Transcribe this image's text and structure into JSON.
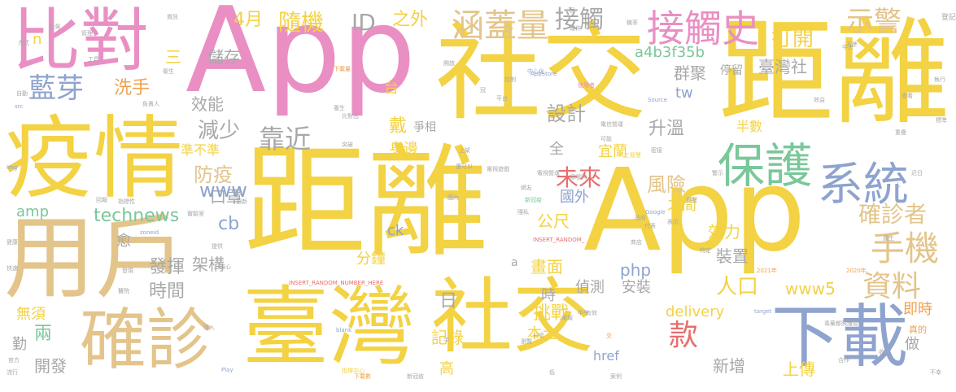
{
  "palette": {
    "yellow": "#f5c95a",
    "gold": "#f3d243",
    "sand": "#e3c48a",
    "pink": "#e98fc4",
    "blue": "#8ea3ce",
    "green": "#7ac79a",
    "orange": "#f0a150",
    "red": "#e86e6e",
    "gray": "#a8a8a8"
  },
  "words": [
    {
      "text": "App",
      "color": "pink"
    },
    {
      "text": "距離",
      "color": "gold"
    },
    {
      "text": "App",
      "color": "gold"
    },
    {
      "text": "社交",
      "color": "gold"
    },
    {
      "text": "距離",
      "color": "gold"
    },
    {
      "text": "疫情",
      "color": "gold"
    },
    {
      "text": "臺灣",
      "color": "gold"
    },
    {
      "text": "用戶",
      "color": "sand"
    },
    {
      "text": "社交",
      "color": "gold"
    },
    {
      "text": "確診",
      "color": "sand"
    },
    {
      "text": "比對",
      "color": "pink"
    },
    {
      "text": "下載",
      "color": "blue"
    },
    {
      "text": "保護",
      "color": "green"
    },
    {
      "text": "系統",
      "color": "blue"
    },
    {
      "text": "接觸史",
      "color": "pink"
    },
    {
      "text": "涵蓋量",
      "color": "sand"
    },
    {
      "text": "藍芽",
      "color": "blue"
    },
    {
      "text": "接觸",
      "color": "gray"
    },
    {
      "text": "示警",
      "color": "sand"
    },
    {
      "text": "手機",
      "color": "sand"
    },
    {
      "text": "資料",
      "color": "sand"
    },
    {
      "text": "確診者",
      "color": "sand"
    },
    {
      "text": "未來",
      "color": "red"
    },
    {
      "text": "風險",
      "color": "sand"
    },
    {
      "text": "4月",
      "color": "gold"
    },
    {
      "text": "隨機",
      "color": "gold"
    },
    {
      "text": "ID",
      "color": "gray"
    },
    {
      "text": "之外",
      "color": "gold"
    },
    {
      "text": "打開",
      "color": "gold"
    },
    {
      "text": "靠近",
      "color": "gray"
    },
    {
      "text": "減少",
      "color": "gray"
    },
    {
      "text": "防疫",
      "color": "sand"
    },
    {
      "text": "效能",
      "color": "gray"
    },
    {
      "text": "儲存",
      "color": "gray"
    },
    {
      "text": "洗手",
      "color": "orange"
    },
    {
      "text": "設計",
      "color": "gray"
    },
    {
      "text": "升溫",
      "color": "gray"
    },
    {
      "text": "群聚",
      "color": "gray"
    },
    {
      "text": "臺灣社",
      "color": "gray"
    },
    {
      "text": "停留",
      "color": "gray"
    },
    {
      "text": "a4b3f35b",
      "color": "green"
    },
    {
      "text": "tw",
      "color": "blue"
    },
    {
      "text": "台",
      "color": "gold"
    },
    {
      "text": "口罩",
      "color": "gray"
    },
    {
      "text": "www",
      "color": "blue"
    },
    {
      "text": "technews",
      "color": "green"
    },
    {
      "text": "amp",
      "color": "green"
    },
    {
      "text": "cb",
      "color": "blue"
    },
    {
      "text": "ck",
      "color": "blue"
    },
    {
      "text": "公尺",
      "color": "gold"
    },
    {
      "text": "國外",
      "color": "blue"
    },
    {
      "text": "之間",
      "color": "gold"
    },
    {
      "text": "宜蘭",
      "color": "gold"
    },
    {
      "text": "身邊",
      "color": "gold"
    },
    {
      "text": "準不準",
      "color": "gold"
    },
    {
      "text": "半數",
      "color": "gold"
    },
    {
      "text": "戴",
      "color": "gold"
    },
    {
      "text": "爭相",
      "color": "gray"
    },
    {
      "text": "全",
      "color": "gray"
    },
    {
      "text": "效力",
      "color": "gold"
    },
    {
      "text": "裝置",
      "color": "gray"
    },
    {
      "text": "人口",
      "color": "gold"
    },
    {
      "text": "架構",
      "color": "gray"
    },
    {
      "text": "發揮",
      "color": "gray"
    },
    {
      "text": "時間",
      "color": "gray"
    },
    {
      "text": "愈",
      "color": "gray"
    },
    {
      "text": "分鐘",
      "color": "gold"
    },
    {
      "text": "畫面",
      "color": "gold"
    },
    {
      "text": "php",
      "color": "blue"
    },
    {
      "text": "www5",
      "color": "gold"
    },
    {
      "text": "安裝",
      "color": "gray"
    },
    {
      "text": "偵測",
      "color": "gray"
    },
    {
      "text": "日",
      "color": "gray"
    },
    {
      "text": "時",
      "color": "gray"
    },
    {
      "text": "delivery",
      "color": "gold"
    },
    {
      "text": "款",
      "color": "red"
    },
    {
      "text": "挑戰",
      "color": "gold"
    },
    {
      "text": "即時",
      "color": "orange"
    },
    {
      "text": "記錄",
      "color": "gold"
    },
    {
      "text": "本土",
      "color": "gold"
    },
    {
      "text": "新增",
      "color": "gray"
    },
    {
      "text": "上傳",
      "color": "gold"
    },
    {
      "text": "做",
      "color": "gray"
    },
    {
      "text": "高",
      "color": "gold"
    },
    {
      "text": "無須",
      "color": "gold"
    },
    {
      "text": "兩",
      "color": "green"
    },
    {
      "text": "勤",
      "color": "gray"
    },
    {
      "text": "開發",
      "color": "gray"
    },
    {
      "text": "href",
      "color": "blue"
    },
    {
      "text": "三",
      "color": "gold"
    },
    {
      "text": "n",
      "color": "gold"
    },
    {
      "text": "a",
      "color": "gray"
    },
    {
      "text": "真的",
      "color": "orange"
    },
    {
      "text": "2020年",
      "color": "orange"
    },
    {
      "text": "2021年",
      "color": "orange"
    },
    {
      "text": "INSERT_RANDOM_NUMBER_HERE",
      "color": "red"
    },
    {
      "text": "INSERT_RANDOM_",
      "color": "red"
    },
    {
      "text": "AppStore",
      "color": "blue"
    },
    {
      "text": "Google",
      "color": "blue"
    },
    {
      "text": "Source",
      "color": "blue"
    },
    {
      "text": "target",
      "color": "blue"
    },
    {
      "text": "blank",
      "color": "blue"
    },
    {
      "text": "Play",
      "color": "blue"
    },
    {
      "text": "img",
      "color": "blue"
    },
    {
      "text": "src",
      "color": "blue"
    },
    {
      "text": "zoneid",
      "color": "blue"
    },
    {
      "text": "300萬",
      "color": "gold"
    },
    {
      "text": "下載量",
      "color": "orange"
    },
    {
      "text": "下載數",
      "color": "orange"
    },
    {
      "text": "中心化",
      "color": "blue"
    },
    {
      "text": "人工智慧",
      "color": "gold"
    },
    {
      "text": "指揮中心",
      "color": "gold"
    },
    {
      "text": "使用者",
      "color": "pink"
    },
    {
      "text": "電信營運",
      "color": "gray"
    },
    {
      "text": "電視營運",
      "color": "gray"
    },
    {
      "text": "電視遊戲",
      "color": "gray"
    },
    {
      "text": "新冠疫",
      "color": "green"
    },
    {
      "text": "毒藥都照護管",
      "color": "gray"
    },
    {
      "text": "還可以",
      "color": "gray"
    },
    {
      "text": "可能",
      "color": "gray"
    },
    {
      "text": "提醒",
      "color": "gray"
    },
    {
      "text": "中午",
      "color": "gray"
    },
    {
      "text": "分享",
      "color": "gray"
    },
    {
      "text": "隱私",
      "color": "gray"
    },
    {
      "text": "上架",
      "color": "gray"
    },
    {
      "text": "平台",
      "color": "gray"
    },
    {
      "text": "方式",
      "color": "gray"
    },
    {
      "text": "工具",
      "color": "gray"
    },
    {
      "text": "自動",
      "color": "gray"
    },
    {
      "text": "指標性",
      "color": "gray"
    },
    {
      "text": "負責人",
      "color": "gray"
    },
    {
      "text": "衛生",
      "color": "gray"
    },
    {
      "text": "資訊",
      "color": "gray"
    },
    {
      "text": "養生",
      "color": "gray"
    },
    {
      "text": "密接",
      "color": "gray"
    },
    {
      "text": "代表",
      "color": "gray"
    },
    {
      "text": "回報",
      "color": "gray"
    },
    {
      "text": "不準",
      "color": "gray"
    },
    {
      "text": "重疊",
      "color": "gray"
    },
    {
      "text": "提供",
      "color": "gray"
    },
    {
      "text": "實驗室",
      "color": "gray"
    },
    {
      "text": "比對出",
      "color": "gray"
    },
    {
      "text": "更新",
      "color": "gray"
    },
    {
      "text": "導入",
      "color": "gray"
    },
    {
      "text": "表示",
      "color": "gray"
    },
    {
      "text": "有效",
      "color": "gray"
    },
    {
      "text": "網友",
      "color": "gray"
    },
    {
      "text": "商店",
      "color": "gray"
    },
    {
      "text": "開啟",
      "color": "gray"
    },
    {
      "text": "擔心",
      "color": "gray"
    },
    {
      "text": "官方",
      "color": "gray"
    },
    {
      "text": "流行",
      "color": "gray"
    },
    {
      "text": "快速",
      "color": "gray"
    },
    {
      "text": "健康",
      "color": "gray"
    },
    {
      "text": "醫院",
      "color": "gray"
    },
    {
      "text": "案例",
      "color": "gray"
    },
    {
      "text": "近日",
      "color": "gray"
    },
    {
      "text": "管理",
      "color": "gray"
    },
    {
      "text": "機率",
      "color": "gray"
    },
    {
      "text": "運作",
      "color": "gray"
    },
    {
      "text": "突破",
      "color": "gray"
    },
    {
      "text": "合作",
      "color": "gray"
    },
    {
      "text": "產生",
      "color": "gray"
    },
    {
      "text": "控制",
      "color": "gray"
    },
    {
      "text": "發現",
      "color": "gray"
    },
    {
      "text": "效益",
      "color": "gray"
    },
    {
      "text": "台灣",
      "color": "gray"
    },
    {
      "text": "國內",
      "color": "gray"
    },
    {
      "text": "收入",
      "color": "gray"
    },
    {
      "text": "警示",
      "color": "gray"
    },
    {
      "text": "登記",
      "color": "gray"
    },
    {
      "text": "執行",
      "color": "gray"
    },
    {
      "text": "中央",
      "color": "gray"
    },
    {
      "text": "交",
      "color": "orange"
    },
    {
      "text": "宇",
      "color": "gray"
    },
    {
      "text": "不幸",
      "color": "gray"
    },
    {
      "text": "特定",
      "color": "gray"
    },
    {
      "text": "瀏覽",
      "color": "gray"
    },
    {
      "text": "標準",
      "color": "gray"
    },
    {
      "text": "低",
      "color": "gray"
    },
    {
      "text": "哪哪叫",
      "color": "gray"
    },
    {
      "text": "新冠疫",
      "color": "gray"
    },
    {
      "text": "電報",
      "color": "gray"
    },
    {
      "text": "查看",
      "color": "gray"
    },
    {
      "text": "政府",
      "color": "gray"
    },
    {
      "text": "冠",
      "color": "gray"
    },
    {
      "text": "人",
      "color": "gray"
    },
    {
      "text": "民",
      "color": "gray"
    },
    {
      "text": "病",
      "color": "gray"
    },
    {
      "text": "中",
      "color": "gray"
    }
  ]
}
